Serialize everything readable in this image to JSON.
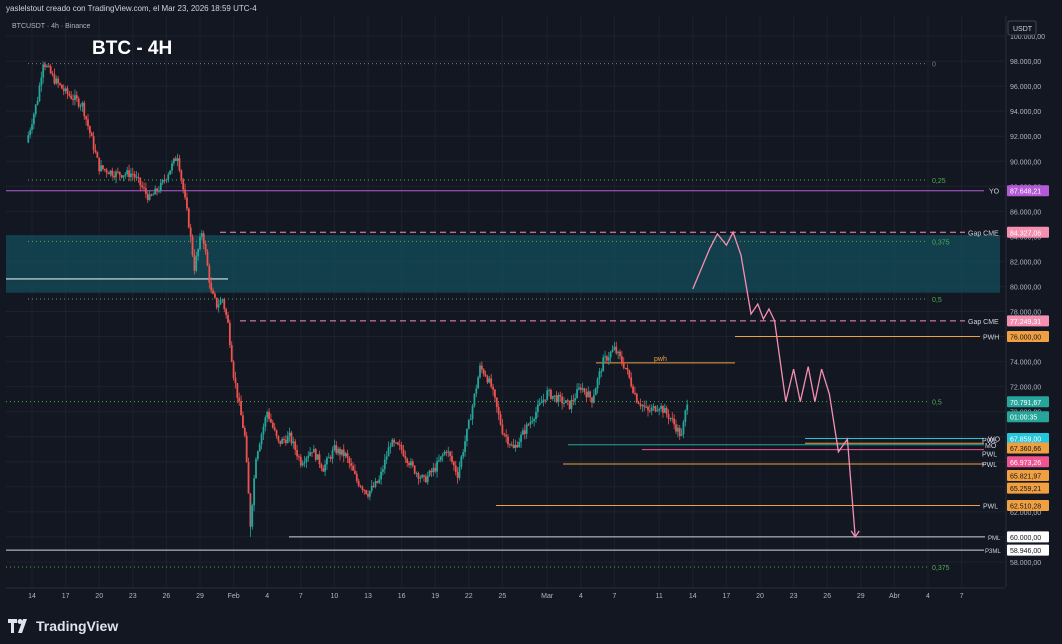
{
  "header": {
    "credit": "yaslelstout creado con TradingView.com, el Mar 23, 2026 18:59 UTC-4"
  },
  "footer": {
    "brand": "TradingView"
  },
  "colors": {
    "background": "#131722",
    "up": "#26a69a",
    "down": "#ef5350",
    "grid": "#1e222d",
    "fib": "#4caf50",
    "pink": "#f48fb1",
    "orange": "#f0a040",
    "teal_zone": "#134e5a",
    "yo": "#b45ad6",
    "wo": "#26c6da"
  },
  "chart_data": {
    "type": "candlestick",
    "symbol": "BTCUSDT · 4h · Binance",
    "title": "BTC - 4H",
    "currency": "USDT",
    "ylim": [
      56000,
      101600
    ],
    "y_ticks": [
      "100.000,00",
      "98.000,00",
      "96.000,00",
      "94.000,00",
      "92.000,00",
      "90.000,00",
      "88.000,00",
      "86.000,00",
      "84.000,00",
      "82.000,00",
      "80.000,00",
      "78.000,00",
      "76.000,00",
      "74.000,00",
      "72.000,00",
      "70.000,00",
      "68.000,00",
      "66.000,00",
      "64.000,00",
      "62.000,00",
      "60.000,00",
      "58.000,00"
    ],
    "y_tick_values": [
      100000,
      98000,
      96000,
      94000,
      92000,
      90000,
      88000,
      86000,
      84000,
      82000,
      80000,
      78000,
      76000,
      74000,
      72000,
      70000,
      68000,
      66000,
      64000,
      62000,
      60000,
      58000
    ],
    "x_ticks": [
      "14",
      "17",
      "20",
      "23",
      "26",
      "29",
      "Feb",
      "4",
      "7",
      "10",
      "13",
      "16",
      "19",
      "22",
      "25",
      "Mar",
      "4",
      "7",
      "11",
      "14",
      "17",
      "20",
      "23",
      "26",
      "29",
      "Abr",
      "4",
      "7"
    ],
    "x_tick_days": [
      -19,
      -16,
      -13,
      -10,
      -7,
      -4,
      -1,
      2,
      5,
      8,
      11,
      14,
      17,
      20,
      23,
      27,
      30,
      33,
      37,
      40,
      43,
      46,
      49,
      52,
      55,
      58,
      61,
      64
    ],
    "price_path": [
      [
        -19.5,
        91500
      ],
      [
        -18.5,
        95000
      ],
      [
        -18,
        98000
      ],
      [
        -17,
        96500
      ],
      [
        -16,
        95500
      ],
      [
        -14.5,
        94500
      ],
      [
        -13,
        89500
      ],
      [
        -11.5,
        89000
      ],
      [
        -10,
        89000
      ],
      [
        -8.5,
        87000
      ],
      [
        -7.5,
        88000
      ],
      [
        -6,
        90500
      ],
      [
        -5,
        85000
      ],
      [
        -4.5,
        81500
      ],
      [
        -3.8,
        84500
      ],
      [
        -3,
        79500
      ],
      [
        -2.5,
        78500
      ],
      [
        -2,
        79000
      ],
      [
        -1.5,
        77000
      ],
      [
        -1,
        73000
      ],
      [
        0,
        68000
      ],
      [
        0.5,
        61000
      ],
      [
        1,
        66500
      ],
      [
        2,
        70000
      ],
      [
        3,
        67500
      ],
      [
        4,
        68000
      ],
      [
        5,
        66000
      ],
      [
        6,
        67000
      ],
      [
        7,
        65500
      ],
      [
        8,
        67000
      ],
      [
        9,
        66500
      ],
      [
        10,
        64500
      ],
      [
        11,
        63500
      ],
      [
        12,
        64500
      ],
      [
        13,
        67500
      ],
      [
        14,
        67000
      ],
      [
        15,
        65500
      ],
      [
        16,
        64500
      ],
      [
        17,
        65500
      ],
      [
        18,
        67000
      ],
      [
        19,
        65000
      ],
      [
        20,
        69000
      ],
      [
        21,
        73500
      ],
      [
        21.5,
        73000
      ],
      [
        22,
        72000
      ],
      [
        23,
        68500
      ],
      [
        24,
        67000
      ],
      [
        25,
        68500
      ],
      [
        26,
        70000
      ],
      [
        27,
        71500
      ],
      [
        28,
        71000
      ],
      [
        29,
        70500
      ],
      [
        30,
        72000
      ],
      [
        31,
        71000
      ],
      [
        32,
        74000
      ],
      [
        33,
        75000
      ],
      [
        34,
        73500
      ],
      [
        35,
        71000
      ],
      [
        36,
        70000
      ],
      [
        37,
        70500
      ],
      [
        38,
        69500
      ],
      [
        39,
        68000
      ],
      [
        39.5,
        70900
      ]
    ],
    "projection": [
      [
        40,
        79800
      ],
      [
        41.5,
        83000
      ],
      [
        42.2,
        84200
      ],
      [
        43,
        83300
      ],
      [
        43.6,
        84327
      ],
      [
        44.3,
        82500
      ],
      [
        45.2,
        77800
      ],
      [
        45.8,
        78600
      ],
      [
        46.3,
        77400
      ],
      [
        46.8,
        78200
      ],
      [
        47.3,
        77249
      ],
      [
        48.3,
        70800
      ],
      [
        49,
        73400
      ],
      [
        49.6,
        70800
      ],
      [
        50.3,
        73600
      ],
      [
        50.9,
        70800
      ],
      [
        51.5,
        73400
      ],
      [
        52.2,
        71400
      ],
      [
        53,
        66800
      ],
      [
        53.8,
        67800
      ],
      [
        54.5,
        60000
      ]
    ],
    "fib_levels": [
      {
        "label": "0",
        "value": 97800
      },
      {
        "label": "0,25",
        "value": 88500
      },
      {
        "label": "0,375",
        "value": 83600
      },
      {
        "label": "0,5",
        "value": 79000
      },
      {
        "label": "0,5",
        "value": 70800
      },
      {
        "label": "0,375",
        "value": 57600
      }
    ],
    "h_lines": [
      {
        "label": "YO",
        "value": 87648
      },
      {
        "label": "Gap CME",
        "value": 84327
      },
      {
        "label": "Gap CME",
        "value": 77249
      },
      {
        "label": "PWH",
        "value": 76000
      },
      {
        "label": "pwh",
        "value": 73900
      },
      {
        "label": "WO",
        "value": 67859
      },
      {
        "label": "MO",
        "value": 67360
      },
      {
        "label": "PWL",
        "value": 66973
      },
      {
        "label": "PWL",
        "value": 65821
      },
      {
        "label": "PWL",
        "value": 62510
      },
      {
        "label": "PML",
        "value": 60000
      },
      {
        "label": "P3ML",
        "value": 58946
      }
    ],
    "zone": {
      "from": 79500,
      "to": 84100
    },
    "price_badges": [
      {
        "text": "87.648,21",
        "value": 87648,
        "color": "#b45ad6"
      },
      {
        "text": "84.327,06",
        "value": 84327,
        "color": "#f48fb1"
      },
      {
        "text": "77.249,31",
        "value": 77249,
        "color": "#f48fb1"
      },
      {
        "text": "76.000,00",
        "value": 76000,
        "color": "#f0a040"
      },
      {
        "text": "70.791,67",
        "value": 70791,
        "color": "#26a69a"
      },
      {
        "text": "01:00:35",
        "value": 69600,
        "color": "#26a69a"
      },
      {
        "text": "67.859,00",
        "value": 67859,
        "color": "#26c6da"
      },
      {
        "text": "67.360,66",
        "value": 67100,
        "color": "#f0a040"
      },
      {
        "text": "66.973,26",
        "value": 66000,
        "color": "#ef5390"
      },
      {
        "text": "65.821,97",
        "value": 64900,
        "color": "#f0a040"
      },
      {
        "text": "65.259,21",
        "value": 63900,
        "color": "#f0a040"
      },
      {
        "text": "62.510,28",
        "value": 62510,
        "color": "#f0a040"
      },
      {
        "text": "60.000,00",
        "value": 60000,
        "color": "#ffffff"
      },
      {
        "text": "58.946,00",
        "value": 58946,
        "color": "#ffffff"
      }
    ]
  }
}
